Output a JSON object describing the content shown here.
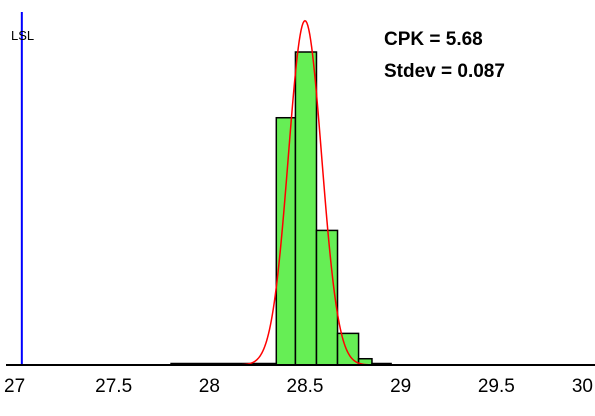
{
  "chart_data": {
    "type": "bar",
    "xlim": [
      27,
      30
    ],
    "ylim": [
      0,
      1
    ],
    "x_ticks": [
      "27",
      "27.5",
      "28",
      "28.5",
      "29",
      "29.5",
      "30"
    ],
    "bins": [
      {
        "x0": 27.8,
        "x1": 28.35,
        "value": 0.004
      },
      {
        "x0": 28.35,
        "x1": 28.45,
        "value": 0.79
      },
      {
        "x0": 28.45,
        "x1": 28.56,
        "value": 1.0
      },
      {
        "x0": 28.56,
        "x1": 28.67,
        "value": 0.43
      },
      {
        "x0": 28.67,
        "x1": 28.78,
        "value": 0.101
      },
      {
        "x0": 28.78,
        "x1": 28.85,
        "value": 0.02
      },
      {
        "x0": 28.85,
        "x1": 28.95,
        "value": 0.004
      }
    ],
    "fit_curve": {
      "mean": 28.5,
      "stdev": 0.087,
      "peak": 1.1
    },
    "spec_limits": [
      {
        "label": "LSL",
        "x": 27.02
      }
    ],
    "annotations": [
      "CPK = 5.68",
      "Stdev = 0.087"
    ],
    "colors": {
      "bars": "#66ee55",
      "bar_outline": "#000000",
      "curve": "#ff0000",
      "lsl_line": "#0000ff",
      "axis": "#000000"
    }
  }
}
